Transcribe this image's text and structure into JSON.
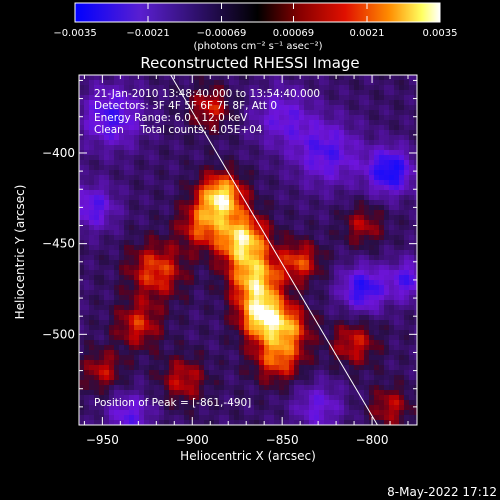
{
  "chart_data": {
    "type": "heatmap",
    "title": "Reconstructed RHESSI Image",
    "xlabel": "Heliocentric X (arcsec)",
    "ylabel": "Heliocentric Y (arcsec)",
    "xlim": [
      -963,
      -775
    ],
    "ylim": [
      -550,
      -357
    ],
    "x_ticks": [
      -950,
      -900,
      -850,
      -800
    ],
    "y_ticks": [
      -400,
      -450,
      -500
    ],
    "x_tick_labels": [
      "−950",
      "−900",
      "−850",
      "−800"
    ],
    "y_tick_labels": [
      "−400",
      "−450",
      "−500"
    ],
    "colorbar": {
      "min": -0.0035,
      "max": 0.0035,
      "ticks": [
        -0.0035,
        -0.0021,
        -0.00069,
        0.00069,
        0.0021,
        0.0035
      ],
      "tick_labels": [
        "−0.0035",
        "−0.0021",
        "−0.00069",
        "0.00069",
        "0.0021",
        "0.0035"
      ],
      "units_label": "(photons cm⁻² s⁻¹ asec⁻²)"
    },
    "annotations": [
      "21-Jan-2010 13:48:40.000 to 13:54:40.000",
      "Detectors: 3F 4F 5F 6F 7F 8F, Att 0",
      "Energy Range: 6.0 - 12.0 keV",
      "Clean     Total counts: 4.05E+04"
    ],
    "peak_label": "Position of Peak = [-861,-490]",
    "peak_position": [
      -861,
      -490
    ],
    "limb_line": [
      [
        -912,
        -357
      ],
      [
        -797,
        -550
      ]
    ],
    "sources": [
      {
        "x": -884,
        "y": -424,
        "peak": 0.0035,
        "spread": 9
      },
      {
        "x": -872,
        "y": -448,
        "peak": 0.0034,
        "spread": 10
      },
      {
        "x": -865,
        "y": -470,
        "peak": 0.003,
        "spread": 10
      },
      {
        "x": -861,
        "y": -490,
        "peak": 0.0035,
        "spread": 9
      },
      {
        "x": -852,
        "y": -512,
        "peak": 0.0024,
        "spread": 10
      },
      {
        "x": -895,
        "y": -440,
        "peak": 0.002,
        "spread": 9
      },
      {
        "x": -840,
        "y": -460,
        "peak": 0.002,
        "spread": 8
      },
      {
        "x": -845,
        "y": -495,
        "peak": 0.0018,
        "spread": 8
      },
      {
        "x": -920,
        "y": -465,
        "peak": 0.0021,
        "spread": 11
      },
      {
        "x": -930,
        "y": -495,
        "peak": 0.0018,
        "spread": 9
      },
      {
        "x": -905,
        "y": -525,
        "peak": 0.0016,
        "spread": 9
      },
      {
        "x": -810,
        "y": -505,
        "peak": 0.0017,
        "spread": 9
      },
      {
        "x": -790,
        "y": -540,
        "peak": 0.0015,
        "spread": 8
      },
      {
        "x": -890,
        "y": -375,
        "peak": 0.0017,
        "spread": 8
      },
      {
        "x": -950,
        "y": -520,
        "peak": 0.0015,
        "spread": 8
      },
      {
        "x": -805,
        "y": -440,
        "peak": 0.0014,
        "spread": 8
      },
      {
        "x": -825,
        "y": -400,
        "peak": -0.002,
        "spread": 13
      },
      {
        "x": -790,
        "y": -410,
        "peak": -0.003,
        "spread": 9
      },
      {
        "x": -805,
        "y": -475,
        "peak": -0.0026,
        "spread": 9
      },
      {
        "x": -945,
        "y": -380,
        "peak": -0.0022,
        "spread": 12
      },
      {
        "x": -955,
        "y": -430,
        "peak": -0.002,
        "spread": 9
      },
      {
        "x": -935,
        "y": -545,
        "peak": -0.0018,
        "spread": 9
      },
      {
        "x": -850,
        "y": -380,
        "peak": -0.0016,
        "spread": 12
      },
      {
        "x": -780,
        "y": -470,
        "peak": -0.002,
        "spread": 8
      },
      {
        "x": -830,
        "y": -540,
        "peak": -0.0016,
        "spread": 10
      }
    ]
  },
  "footer": {
    "date": "8-May-2022 17:12"
  },
  "style": {
    "background": "#000000",
    "text": "#ffffff",
    "colormap_negative": [
      "#0000ff",
      "#7a00ff",
      "#4b1a6b"
    ],
    "colormap_positive": [
      "#000000",
      "#c80000",
      "#ff7a00",
      "#ffff50",
      "#ffffff"
    ]
  }
}
